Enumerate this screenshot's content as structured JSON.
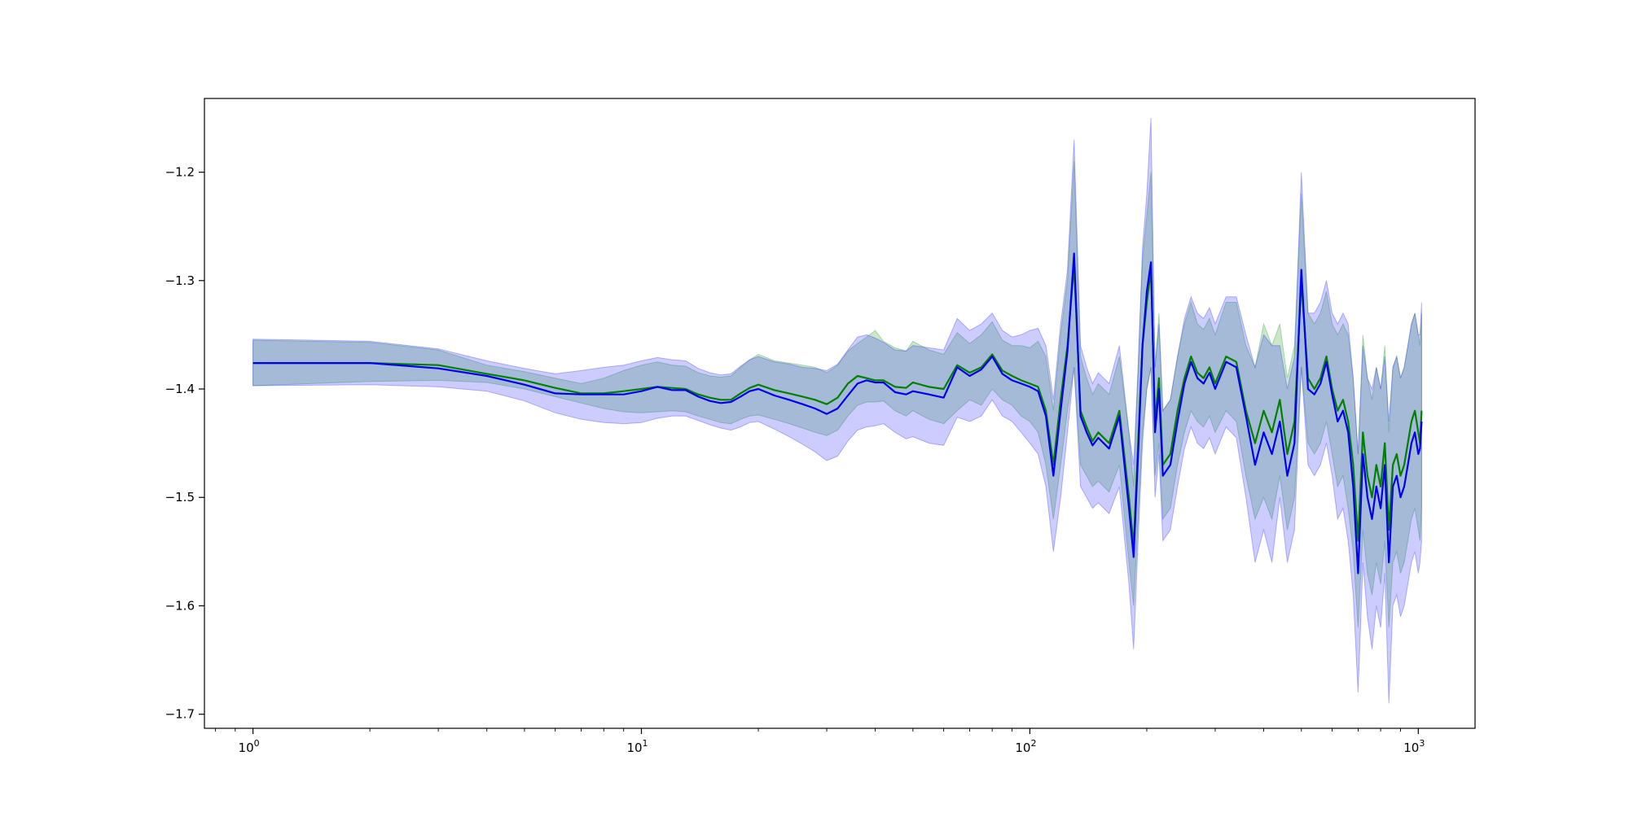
{
  "chart_data": {
    "type": "line",
    "title": "",
    "xlabel": "",
    "ylabel": "",
    "xscale": "log",
    "xlim": [
      0.75,
      1400
    ],
    "ylim": [
      -1.713,
      -1.132
    ],
    "grid": false,
    "legend": "none",
    "x_ticks": [
      {
        "value": 1,
        "base": "10",
        "exp": "0"
      },
      {
        "value": 10,
        "base": "10",
        "exp": "1"
      },
      {
        "value": 100,
        "base": "10",
        "exp": "2"
      },
      {
        "value": 1000,
        "base": "10",
        "exp": "3"
      }
    ],
    "y_ticks": [
      {
        "value": -1.2,
        "label": "−1.2"
      },
      {
        "value": -1.3,
        "label": "−1.3"
      },
      {
        "value": -1.4,
        "label": "−1.4"
      },
      {
        "value": -1.5,
        "label": "−1.5"
      },
      {
        "value": -1.6,
        "label": "−1.6"
      },
      {
        "value": -1.7,
        "label": "−1.7"
      }
    ],
    "x": [
      1,
      2,
      3,
      4,
      5,
      6,
      7,
      8,
      9,
      10,
      11,
      12,
      13,
      14,
      15,
      16,
      17,
      18,
      19,
      20,
      22,
      24,
      26,
      28,
      30,
      32,
      34,
      36,
      38,
      40,
      42,
      45,
      48,
      50,
      55,
      60,
      65,
      70,
      75,
      80,
      85,
      90,
      95,
      100,
      105,
      110,
      115,
      120,
      125,
      130,
      135,
      140,
      145,
      150,
      160,
      170,
      180,
      185,
      190,
      195,
      200,
      205,
      210,
      215,
      220,
      230,
      240,
      250,
      260,
      270,
      280,
      290,
      300,
      320,
      340,
      360,
      380,
      400,
      420,
      440,
      460,
      480,
      500,
      520,
      540,
      560,
      580,
      600,
      620,
      640,
      660,
      680,
      700,
      720,
      740,
      760,
      780,
      800,
      820,
      840,
      860,
      880,
      900,
      920,
      940,
      960,
      980,
      1000,
      1010,
      1020
    ],
    "series": [
      {
        "color": "#008000",
        "band_color": "#2ca02c",
        "band_opacity": 0.25,
        "y": [
          -1.376,
          -1.376,
          -1.378,
          -1.386,
          -1.392,
          -1.399,
          -1.404,
          -1.404,
          -1.402,
          -1.4,
          -1.398,
          -1.399,
          -1.4,
          -1.405,
          -1.408,
          -1.41,
          -1.41,
          -1.404,
          -1.399,
          -1.396,
          -1.401,
          -1.404,
          -1.407,
          -1.41,
          -1.414,
          -1.408,
          -1.395,
          -1.388,
          -1.39,
          -1.392,
          -1.392,
          -1.398,
          -1.399,
          -1.394,
          -1.398,
          -1.4,
          -1.378,
          -1.385,
          -1.38,
          -1.368,
          -1.383,
          -1.388,
          -1.392,
          -1.395,
          -1.398,
          -1.42,
          -1.47,
          -1.41,
          -1.36,
          -1.285,
          -1.42,
          -1.435,
          -1.448,
          -1.44,
          -1.45,
          -1.42,
          -1.5,
          -1.545,
          -1.45,
          -1.36,
          -1.32,
          -1.29,
          -1.43,
          -1.39,
          -1.47,
          -1.46,
          -1.42,
          -1.39,
          -1.37,
          -1.385,
          -1.39,
          -1.38,
          -1.395,
          -1.37,
          -1.375,
          -1.42,
          -1.45,
          -1.42,
          -1.44,
          -1.41,
          -1.46,
          -1.43,
          -1.3,
          -1.39,
          -1.4,
          -1.39,
          -1.37,
          -1.4,
          -1.42,
          -1.41,
          -1.43,
          -1.47,
          -1.54,
          -1.44,
          -1.48,
          -1.5,
          -1.47,
          -1.49,
          -1.45,
          -1.53,
          -1.47,
          -1.46,
          -1.48,
          -1.47,
          -1.45,
          -1.43,
          -1.42,
          -1.44,
          -1.45,
          -1.42
        ],
        "lower": [
          -1.397,
          -1.393,
          -1.392,
          -1.394,
          -1.4,
          -1.407,
          -1.413,
          -1.418,
          -1.421,
          -1.422,
          -1.421,
          -1.42,
          -1.421,
          -1.425,
          -1.428,
          -1.431,
          -1.432,
          -1.428,
          -1.425,
          -1.424,
          -1.428,
          -1.432,
          -1.436,
          -1.44,
          -1.443,
          -1.438,
          -1.425,
          -1.415,
          -1.412,
          -1.412,
          -1.411,
          -1.42,
          -1.425,
          -1.42,
          -1.428,
          -1.432,
          -1.42,
          -1.41,
          -1.415,
          -1.4,
          -1.41,
          -1.415,
          -1.425,
          -1.43,
          -1.44,
          -1.47,
          -1.52,
          -1.47,
          -1.42,
          -1.38,
          -1.47,
          -1.48,
          -1.49,
          -1.485,
          -1.495,
          -1.47,
          -1.56,
          -1.6,
          -1.52,
          -1.44,
          -1.4,
          -1.38,
          -1.48,
          -1.45,
          -1.52,
          -1.51,
          -1.47,
          -1.44,
          -1.42,
          -1.43,
          -1.435,
          -1.425,
          -1.44,
          -1.42,
          -1.43,
          -1.48,
          -1.52,
          -1.5,
          -1.52,
          -1.48,
          -1.53,
          -1.5,
          -1.38,
          -1.45,
          -1.46,
          -1.45,
          -1.43,
          -1.46,
          -1.49,
          -1.48,
          -1.51,
          -1.55,
          -1.62,
          -1.53,
          -1.57,
          -1.59,
          -1.56,
          -1.58,
          -1.54,
          -1.62,
          -1.56,
          -1.55,
          -1.57,
          -1.56,
          -1.54,
          -1.52,
          -1.51,
          -1.53,
          -1.54,
          -1.51
        ],
        "upper": [
          -1.355,
          -1.357,
          -1.364,
          -1.378,
          -1.384,
          -1.39,
          -1.395,
          -1.39,
          -1.383,
          -1.378,
          -1.375,
          -1.378,
          -1.379,
          -1.385,
          -1.388,
          -1.389,
          -1.388,
          -1.38,
          -1.373,
          -1.368,
          -1.374,
          -1.376,
          -1.378,
          -1.38,
          -1.385,
          -1.378,
          -1.365,
          -1.358,
          -1.352,
          -1.346,
          -1.356,
          -1.362,
          -1.365,
          -1.356,
          -1.364,
          -1.368,
          -1.348,
          -1.358,
          -1.35,
          -1.338,
          -1.355,
          -1.36,
          -1.36,
          -1.362,
          -1.356,
          -1.37,
          -1.42,
          -1.35,
          -1.3,
          -1.19,
          -1.37,
          -1.39,
          -1.405,
          -1.395,
          -1.405,
          -1.37,
          -1.44,
          -1.49,
          -1.38,
          -1.28,
          -1.24,
          -1.2,
          -1.38,
          -1.33,
          -1.42,
          -1.41,
          -1.37,
          -1.34,
          -1.32,
          -1.34,
          -1.345,
          -1.335,
          -1.35,
          -1.32,
          -1.32,
          -1.36,
          -1.38,
          -1.34,
          -1.36,
          -1.34,
          -1.39,
          -1.36,
          -1.22,
          -1.33,
          -1.34,
          -1.33,
          -1.31,
          -1.34,
          -1.35,
          -1.34,
          -1.35,
          -1.39,
          -1.46,
          -1.35,
          -1.39,
          -1.41,
          -1.38,
          -1.4,
          -1.36,
          -1.44,
          -1.38,
          -1.37,
          -1.39,
          -1.38,
          -1.36,
          -1.34,
          -1.33,
          -1.35,
          -1.36,
          -1.33
        ]
      },
      {
        "color": "#0000ee",
        "band_color": "#3333ff",
        "band_opacity": 0.25,
        "y": [
          -1.376,
          -1.376,
          -1.381,
          -1.388,
          -1.396,
          -1.404,
          -1.405,
          -1.405,
          -1.405,
          -1.402,
          -1.398,
          -1.401,
          -1.401,
          -1.407,
          -1.411,
          -1.413,
          -1.412,
          -1.407,
          -1.402,
          -1.4,
          -1.406,
          -1.41,
          -1.414,
          -1.418,
          -1.423,
          -1.418,
          -1.406,
          -1.395,
          -1.392,
          -1.394,
          -1.394,
          -1.403,
          -1.405,
          -1.402,
          -1.405,
          -1.408,
          -1.38,
          -1.388,
          -1.382,
          -1.37,
          -1.386,
          -1.392,
          -1.395,
          -1.398,
          -1.402,
          -1.425,
          -1.48,
          -1.42,
          -1.365,
          -1.275,
          -1.425,
          -1.44,
          -1.452,
          -1.445,
          -1.455,
          -1.425,
          -1.51,
          -1.555,
          -1.46,
          -1.36,
          -1.31,
          -1.283,
          -1.44,
          -1.4,
          -1.48,
          -1.47,
          -1.43,
          -1.395,
          -1.375,
          -1.39,
          -1.395,
          -1.385,
          -1.4,
          -1.375,
          -1.38,
          -1.425,
          -1.47,
          -1.44,
          -1.46,
          -1.43,
          -1.48,
          -1.45,
          -1.29,
          -1.4,
          -1.405,
          -1.395,
          -1.375,
          -1.405,
          -1.43,
          -1.42,
          -1.44,
          -1.49,
          -1.57,
          -1.46,
          -1.5,
          -1.52,
          -1.49,
          -1.51,
          -1.47,
          -1.56,
          -1.49,
          -1.48,
          -1.5,
          -1.49,
          -1.47,
          -1.45,
          -1.44,
          -1.46,
          -1.455,
          -1.43
        ],
        "lower": [
          -1.397,
          -1.396,
          -1.398,
          -1.402,
          -1.411,
          -1.422,
          -1.428,
          -1.431,
          -1.432,
          -1.431,
          -1.427,
          -1.425,
          -1.425,
          -1.429,
          -1.433,
          -1.436,
          -1.438,
          -1.435,
          -1.431,
          -1.43,
          -1.437,
          -1.444,
          -1.451,
          -1.458,
          -1.466,
          -1.462,
          -1.448,
          -1.438,
          -1.435,
          -1.434,
          -1.432,
          -1.44,
          -1.446,
          -1.444,
          -1.45,
          -1.452,
          -1.426,
          -1.43,
          -1.425,
          -1.41,
          -1.425,
          -1.43,
          -1.44,
          -1.45,
          -1.46,
          -1.49,
          -1.55,
          -1.5,
          -1.44,
          -1.38,
          -1.49,
          -1.5,
          -1.51,
          -1.505,
          -1.515,
          -1.49,
          -1.58,
          -1.64,
          -1.54,
          -1.45,
          -1.4,
          -1.38,
          -1.5,
          -1.46,
          -1.54,
          -1.53,
          -1.49,
          -1.455,
          -1.435,
          -1.45,
          -1.455,
          -1.445,
          -1.46,
          -1.435,
          -1.445,
          -1.5,
          -1.56,
          -1.53,
          -1.56,
          -1.5,
          -1.56,
          -1.53,
          -1.38,
          -1.47,
          -1.48,
          -1.47,
          -1.45,
          -1.48,
          -1.52,
          -1.51,
          -1.54,
          -1.59,
          -1.68,
          -1.56,
          -1.61,
          -1.64,
          -1.6,
          -1.62,
          -1.57,
          -1.69,
          -1.6,
          -1.59,
          -1.61,
          -1.6,
          -1.58,
          -1.56,
          -1.55,
          -1.57,
          -1.56,
          -1.54
        ],
        "upper": [
          -1.354,
          -1.356,
          -1.363,
          -1.374,
          -1.381,
          -1.386,
          -1.383,
          -1.38,
          -1.378,
          -1.374,
          -1.371,
          -1.373,
          -1.374,
          -1.381,
          -1.385,
          -1.387,
          -1.386,
          -1.379,
          -1.373,
          -1.37,
          -1.375,
          -1.377,
          -1.38,
          -1.381,
          -1.383,
          -1.377,
          -1.364,
          -1.352,
          -1.35,
          -1.353,
          -1.357,
          -1.364,
          -1.365,
          -1.36,
          -1.362,
          -1.364,
          -1.335,
          -1.346,
          -1.34,
          -1.33,
          -1.346,
          -1.352,
          -1.35,
          -1.346,
          -1.344,
          -1.36,
          -1.41,
          -1.34,
          -1.29,
          -1.17,
          -1.36,
          -1.38,
          -1.395,
          -1.385,
          -1.395,
          -1.36,
          -1.44,
          -1.47,
          -1.38,
          -1.27,
          -1.22,
          -1.15,
          -1.38,
          -1.34,
          -1.42,
          -1.41,
          -1.37,
          -1.335,
          -1.315,
          -1.33,
          -1.335,
          -1.325,
          -1.34,
          -1.315,
          -1.315,
          -1.35,
          -1.38,
          -1.35,
          -1.36,
          -1.36,
          -1.4,
          -1.37,
          -1.2,
          -1.33,
          -1.33,
          -1.32,
          -1.3,
          -1.33,
          -1.34,
          -1.33,
          -1.34,
          -1.39,
          -1.46,
          -1.36,
          -1.39,
          -1.4,
          -1.38,
          -1.4,
          -1.37,
          -1.43,
          -1.38,
          -1.37,
          -1.39,
          -1.38,
          -1.36,
          -1.34,
          -1.33,
          -1.35,
          -1.35,
          -1.32
        ]
      }
    ]
  }
}
